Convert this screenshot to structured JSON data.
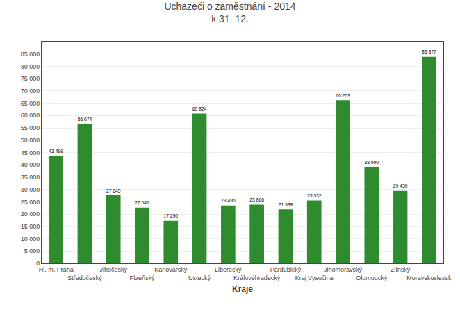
{
  "chart_data": {
    "type": "bar",
    "title": "Uchazeči o zaměstnání - 2014",
    "subtitle": "k 31. 12.",
    "xlabel": "Kraje",
    "categories": [
      "Hl. m. Praha",
      "Středočeský",
      "Jihočeský",
      "Plzeňský",
      "Karlovarský",
      "Ústecký",
      "Liberecký",
      "Královéhradecký",
      "Pardubický",
      "Kraj Vysočina",
      "Jihomoravský",
      "Olomoucký",
      "Zlínský",
      "Moravskoslezsk"
    ],
    "values": [
      43499,
      56674,
      27645,
      22641,
      17290,
      60824,
      23496,
      23866,
      21938,
      25532,
      66203,
      38990,
      29439,
      83877
    ],
    "value_labels": [
      "43 499",
      "56 674",
      "27 645",
      "22 641",
      "17 290",
      "60 824",
      "23 496",
      "23 866",
      "21 938",
      "25 532",
      "66 203",
      "38 990",
      "29 439",
      "83 877"
    ],
    "color": "#2e8b2e",
    "ylim": [
      0,
      90000
    ],
    "yticks": [
      0,
      {
        "value": 5000,
        "label": "5 000"
      },
      {
        "value": 10000,
        "label": "10 000"
      },
      {
        "value": 15000,
        "label": "15 000"
      },
      {
        "value": 20000,
        "label": "20 000"
      },
      {
        "value": 25000,
        "label": "25 000"
      },
      {
        "value": 30000,
        "label": "30 000"
      },
      {
        "value": 35000,
        "label": "35 000"
      },
      {
        "value": 40000,
        "label": "40 000"
      },
      {
        "value": 45000,
        "label": "45 000"
      },
      {
        "value": 50000,
        "label": "50 000"
      },
      {
        "value": 55000,
        "label": "55 000"
      },
      {
        "value": 60000,
        "label": "60 000"
      },
      {
        "value": 65000,
        "label": "65 000"
      },
      {
        "value": 70000,
        "label": "70 000"
      },
      {
        "value": 75000,
        "label": "75 000"
      },
      {
        "value": 80000,
        "label": "80 000"
      },
      {
        "value": 85000,
        "label": "85 000"
      }
    ],
    "grid": true,
    "data_labels": true
  }
}
